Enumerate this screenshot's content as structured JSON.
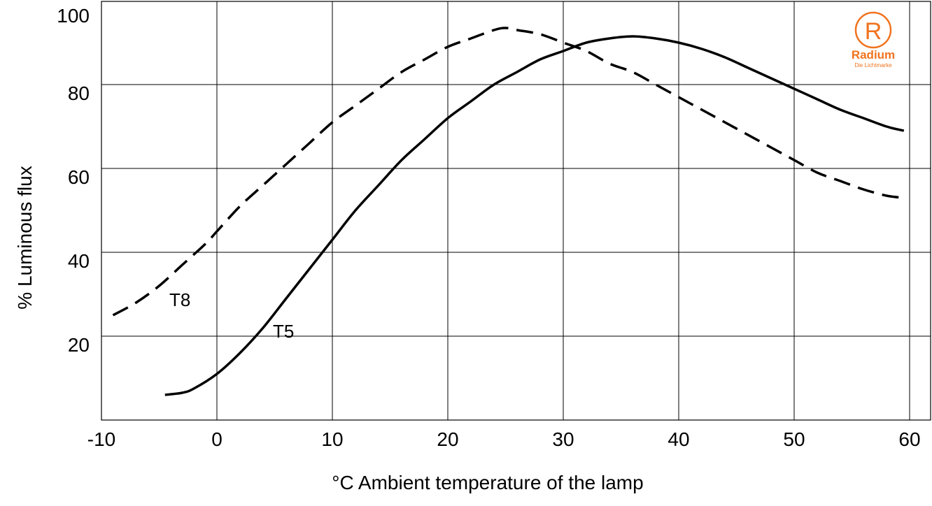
{
  "chart_data": {
    "type": "line",
    "xlabel": "°C Ambient temperature of the lamp",
    "ylabel": "% Luminous flux",
    "xlim": [
      -10,
      60
    ],
    "ylim": [
      0,
      100
    ],
    "x_ticks": [
      "-10",
      "0",
      "10",
      "20",
      "30",
      "40",
      "50",
      "60"
    ],
    "y_ticks": [
      "20",
      "40",
      "60",
      "80",
      "100"
    ],
    "grid": true,
    "series": [
      {
        "name": "T8",
        "style": "dashed",
        "points": [
          [
            -9,
            25
          ],
          [
            -7,
            28
          ],
          [
            -5,
            32
          ],
          [
            -3,
            37
          ],
          [
            -1,
            42
          ],
          [
            0,
            45
          ],
          [
            2,
            51
          ],
          [
            4,
            56
          ],
          [
            6,
            61
          ],
          [
            8,
            66
          ],
          [
            10,
            71
          ],
          [
            12,
            75
          ],
          [
            14,
            79
          ],
          [
            16,
            83
          ],
          [
            18,
            86
          ],
          [
            20,
            89
          ],
          [
            22,
            91
          ],
          [
            24,
            93
          ],
          [
            25,
            93.5
          ],
          [
            26,
            93
          ],
          [
            28,
            92
          ],
          [
            30,
            90
          ],
          [
            32,
            88
          ],
          [
            34,
            85
          ],
          [
            36,
            83
          ],
          [
            38,
            80
          ],
          [
            40,
            77
          ],
          [
            42,
            74
          ],
          [
            44,
            71
          ],
          [
            46,
            68
          ],
          [
            48,
            65
          ],
          [
            50,
            62
          ],
          [
            52,
            59
          ],
          [
            54,
            57
          ],
          [
            56,
            55
          ],
          [
            58,
            53.5
          ],
          [
            59.5,
            53
          ]
        ]
      },
      {
        "name": "T5",
        "style": "solid",
        "points": [
          [
            -4.5,
            6
          ],
          [
            -3,
            6.5
          ],
          [
            -2,
            7.5
          ],
          [
            0,
            11
          ],
          [
            2,
            16
          ],
          [
            4,
            22
          ],
          [
            6,
            29
          ],
          [
            8,
            36
          ],
          [
            10,
            43
          ],
          [
            12,
            50
          ],
          [
            14,
            56
          ],
          [
            16,
            62
          ],
          [
            18,
            67
          ],
          [
            20,
            72
          ],
          [
            22,
            76
          ],
          [
            24,
            80
          ],
          [
            26,
            83
          ],
          [
            28,
            86
          ],
          [
            30,
            88
          ],
          [
            32,
            90
          ],
          [
            34,
            91
          ],
          [
            36,
            91.5
          ],
          [
            38,
            91
          ],
          [
            40,
            90
          ],
          [
            42,
            88.5
          ],
          [
            44,
            86.5
          ],
          [
            46,
            84
          ],
          [
            48,
            81.5
          ],
          [
            50,
            79
          ],
          [
            52,
            76.5
          ],
          [
            54,
            74
          ],
          [
            56,
            72
          ],
          [
            58,
            70
          ],
          [
            59.5,
            69
          ]
        ]
      }
    ]
  },
  "logo": {
    "mark": "R",
    "name": "Radium",
    "tagline": "Die Lichtmarke",
    "color": "#f0731e"
  }
}
